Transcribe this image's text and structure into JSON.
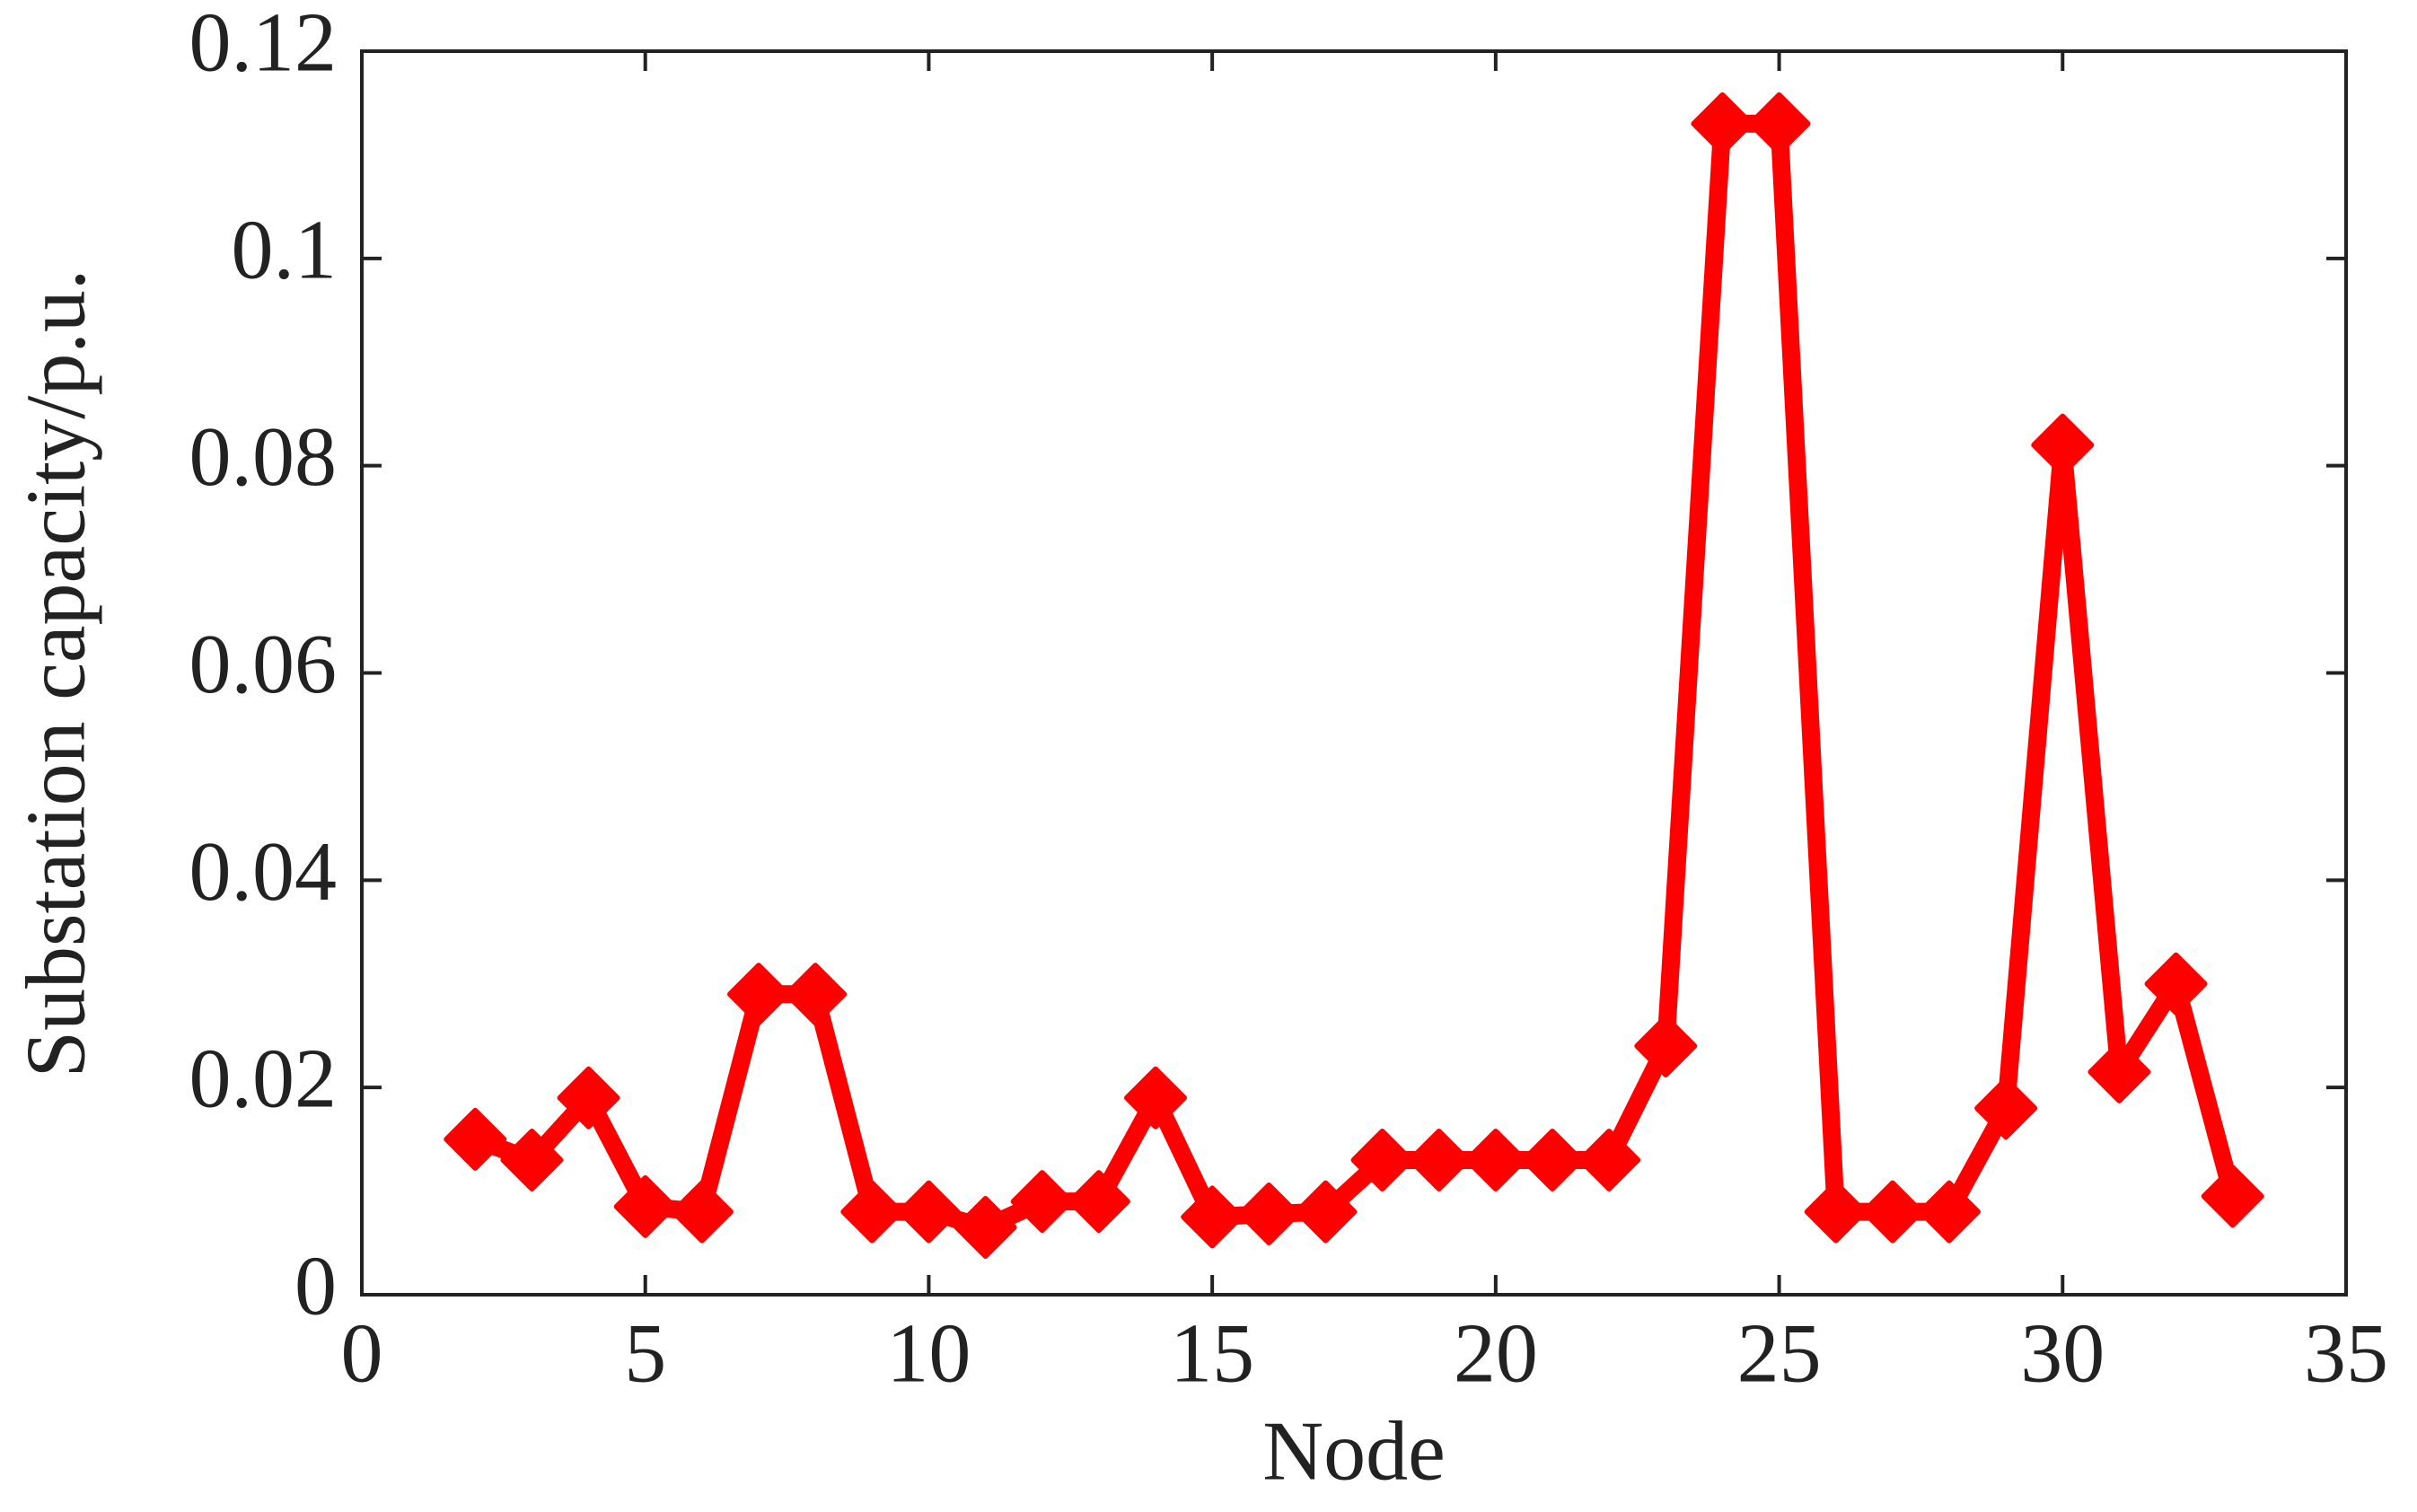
{
  "chart_data": {
    "type": "line",
    "x_label": "Node",
    "y_label": "Substation capacity/p.u.",
    "x": [
      2,
      3,
      4,
      5,
      6,
      7,
      8,
      9,
      10,
      11,
      12,
      13,
      14,
      15,
      16,
      17,
      18,
      19,
      20,
      21,
      22,
      23,
      24,
      25,
      26,
      27,
      28,
      29,
      30,
      31,
      32,
      33
    ],
    "series": [
      {
        "color": "#ff0000",
        "values": [
          0.015,
          0.013,
          0.019,
          0.0085,
          0.008,
          0.029,
          0.029,
          0.008,
          0.008,
          0.0065,
          0.009,
          0.009,
          0.019,
          0.0075,
          0.0078,
          0.008,
          0.013,
          0.013,
          0.013,
          0.013,
          0.013,
          0.024,
          0.113,
          0.113,
          0.008,
          0.008,
          0.008,
          0.018,
          0.082,
          0.0215,
          0.03,
          0.0095
        ]
      }
    ],
    "xlim": [
      0,
      35
    ],
    "xticks": [
      0,
      5,
      10,
      15,
      20,
      25,
      30,
      35
    ],
    "ylim": [
      0,
      0.12
    ],
    "yticks": [
      0,
      0.02,
      0.04,
      0.06,
      0.08,
      0.1,
      0.12
    ],
    "marker": "diamond"
  }
}
